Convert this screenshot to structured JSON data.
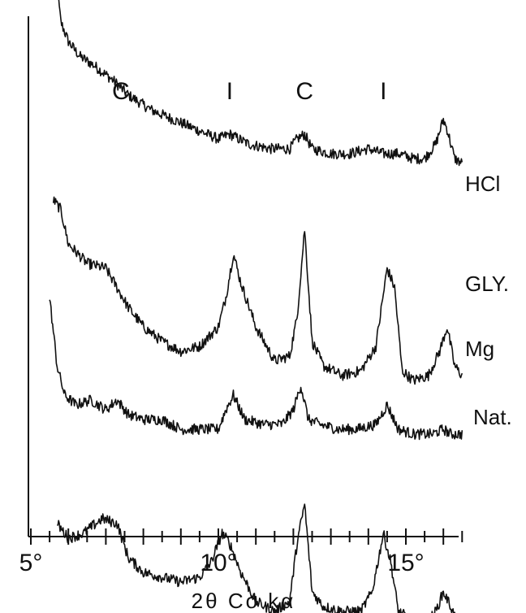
{
  "chart_data": {
    "type": "line",
    "title": "",
    "xlabel": "2θ Co kα",
    "ylabel": "",
    "xlim": [
      5,
      16.5
    ],
    "ylim": [
      0,
      100
    ],
    "x_ticks": [
      {
        "value": 5,
        "label": "5°"
      },
      {
        "value": 10,
        "label": "10°"
      },
      {
        "value": 15,
        "label": "15°"
      }
    ],
    "peak_markers": [
      {
        "x": 7.4,
        "label": "C"
      },
      {
        "x": 10.3,
        "label": "I"
      },
      {
        "x": 12.3,
        "label": "C"
      },
      {
        "x": 14.4,
        "label": "I"
      }
    ],
    "series": [
      {
        "name": "HCl",
        "color": "#111111",
        "x": [
          5.6,
          5.7,
          5.8,
          6.0,
          6.3,
          6.7,
          7.2,
          7.6,
          8.2,
          8.8,
          9.4,
          10.0,
          10.3,
          10.8,
          11.4,
          11.9,
          12.1,
          12.3,
          12.5,
          13.0,
          13.5,
          14.0,
          14.4,
          14.8,
          15.2,
          15.5,
          15.8,
          16.0,
          16.1,
          16.3,
          16.5
        ],
        "y": [
          90,
          75,
          68,
          64,
          61,
          59,
          56,
          53,
          50,
          48,
          46,
          44,
          45,
          43,
          42,
          42,
          44,
          45,
          42,
          41,
          41,
          42,
          41,
          41,
          40,
          40,
          43,
          48,
          46,
          40,
          39
        ]
      },
      {
        "name": "GLY.",
        "color": "#111111",
        "x": [
          5.6,
          5.8,
          6.0,
          6.5,
          7.0,
          7.3,
          7.6,
          8.0,
          8.5,
          9.0,
          9.5,
          10.0,
          10.2,
          10.4,
          10.6,
          11.0,
          11.5,
          11.9,
          12.1,
          12.3,
          12.5,
          12.8,
          13.3,
          13.8,
          14.2,
          14.5,
          14.7,
          14.9,
          15.2,
          15.6,
          15.9,
          16.1,
          16.3,
          16.5
        ],
        "y": [
          64,
          62,
          55,
          51,
          50,
          46,
          42,
          38,
          35,
          33,
          34,
          38,
          44,
          53,
          47,
          38,
          31,
          32,
          40,
          58,
          35,
          30,
          28,
          29,
          34,
          50,
          46,
          29,
          27,
          28,
          33,
          38,
          30,
          28
        ]
      },
      {
        "name": "Mg",
        "color": "#111111",
        "x": [
          5.5,
          5.7,
          5.9,
          6.2,
          6.6,
          7.0,
          7.3,
          7.6,
          8.0,
          8.5,
          9.0,
          9.5,
          10.0,
          10.2,
          10.4,
          10.7,
          11.2,
          11.7,
          12.0,
          12.2,
          12.4,
          12.7,
          13.2,
          13.7,
          14.2,
          14.5,
          14.8,
          15.2,
          15.7,
          16.0,
          16.2,
          16.5
        ],
        "y": [
          54,
          40,
          34,
          32,
          33,
          31,
          33,
          30,
          29,
          29,
          27,
          27,
          27,
          31,
          34,
          29,
          28,
          28,
          31,
          36,
          29,
          28,
          27,
          27,
          28,
          32,
          27,
          26,
          26,
          27,
          26,
          26
        ]
      },
      {
        "name": "Nat.",
        "color": "#111111",
        "x": [
          5.7,
          6.0,
          6.4,
          6.9,
          7.3,
          7.6,
          8.0,
          8.5,
          9.0,
          9.5,
          9.8,
          10.1,
          10.3,
          10.6,
          11.0,
          11.5,
          11.9,
          12.1,
          12.3,
          12.5,
          12.8,
          13.3,
          13.8,
          14.1,
          14.4,
          14.6,
          14.8,
          15.2,
          15.5,
          15.8,
          16.0,
          16.2,
          16.4
        ],
        "y": [
          26,
          23,
          24,
          27,
          26,
          19,
          16,
          15,
          14,
          15,
          18,
          24,
          22,
          16,
          10,
          8,
          10,
          22,
          30,
          12,
          9,
          8,
          8,
          12,
          24,
          18,
          8,
          6,
          5,
          8,
          12,
          9,
          5
        ]
      }
    ]
  }
}
